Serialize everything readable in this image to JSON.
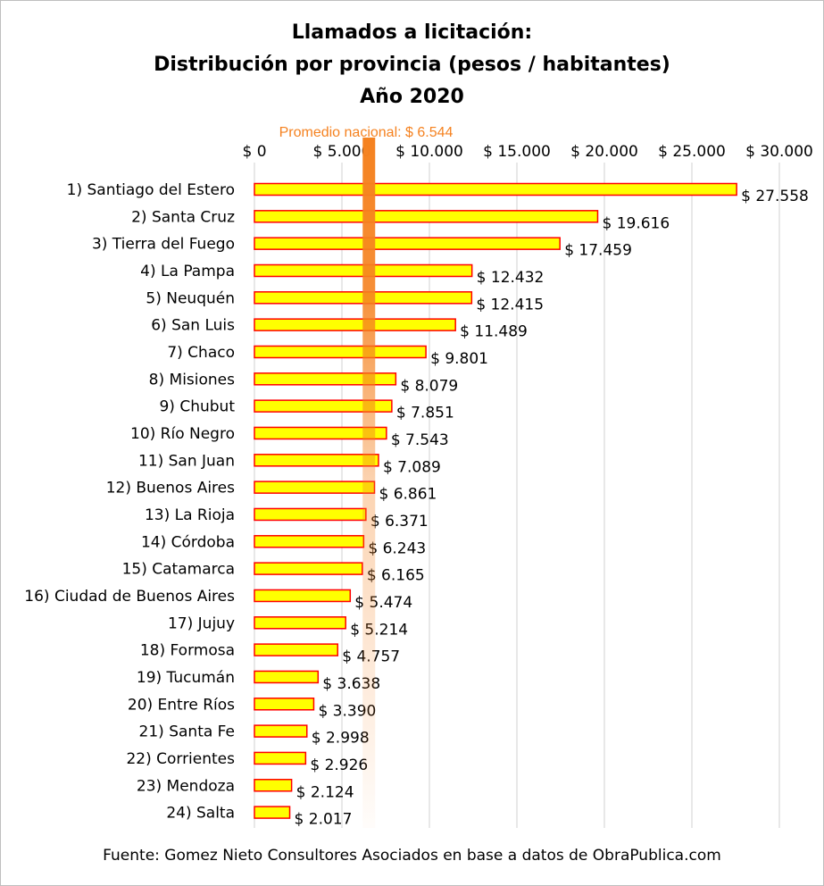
{
  "chart_data": {
    "type": "bar",
    "orientation": "horizontal",
    "title": [
      "Llamados a licitación:",
      "Distribución por provincia (pesos / habitantes)",
      "Año 2020"
    ],
    "reference_line": {
      "label": "Promedio nacional: $ 6.544",
      "value": 6544,
      "color": "#f58220"
    },
    "categories": [
      "1) Santiago del Estero",
      "2) Santa Cruz",
      "3) Tierra del Fuego",
      "4) La Pampa",
      "5) Neuquén",
      "6) San Luis",
      "7) Chaco",
      "8) Misiones",
      "9) Chubut",
      "10) Río Negro",
      "11) San Juan",
      "12) Buenos Aires",
      "13) La Rioja",
      "14) Córdoba",
      "15) Catamarca",
      "16) Ciudad de Buenos Aires",
      "17) Jujuy",
      "18) Formosa",
      "19) Tucumán",
      "20) Entre Ríos",
      "21) Santa Fe",
      "22) Corrientes",
      "23) Mendoza",
      "24) Salta"
    ],
    "values": [
      27558,
      19616,
      17459,
      12432,
      12415,
      11489,
      9801,
      8079,
      7851,
      7543,
      7089,
      6861,
      6371,
      6243,
      6165,
      5474,
      5214,
      4757,
      3638,
      3390,
      2998,
      2926,
      2124,
      2017
    ],
    "data_labels": [
      "$ 27.558",
      "$ 19.616",
      "$ 17.459",
      "$ 12.432",
      "$ 12.415",
      "$ 11.489",
      "$ 9.801",
      "$ 8.079",
      "$ 7.851",
      "$ 7.543",
      "$ 7.089",
      "$ 6.861",
      "$ 6.371",
      "$ 6.243",
      "$ 6.165",
      "$ 5.474",
      "$ 5.214",
      "$ 4.757",
      "$ 3.638",
      "$ 3.390",
      "$ 2.998",
      "$ 2.926",
      "$ 2.124",
      "$ 2.017"
    ],
    "x_ticks": [
      0,
      5000,
      10000,
      15000,
      20000,
      25000,
      30000
    ],
    "x_tick_labels": [
      "$ 0",
      "$ 5.000",
      "$ 10.000",
      "$ 15.000",
      "$ 20.000",
      "$ 25.000",
      "$ 30.000"
    ],
    "xlim": [
      0,
      30000
    ],
    "axis_position": "top",
    "grid": "vertical",
    "bar_fill": "#ffff00",
    "bar_stroke": "#ff0000",
    "legend": "none"
  },
  "source": "Fuente: Gomez Nieto Consultores Asociados en base a datos de ObraPublica.com"
}
